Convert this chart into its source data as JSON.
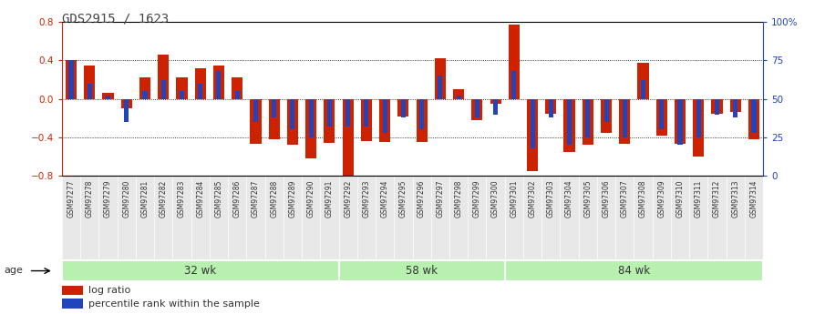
{
  "title": "GDS2915 / 1623",
  "samples": [
    "GSM97277",
    "GSM97278",
    "GSM97279",
    "GSM97280",
    "GSM97281",
    "GSM97282",
    "GSM97283",
    "GSM97284",
    "GSM97285",
    "GSM97286",
    "GSM97287",
    "GSM97288",
    "GSM97289",
    "GSM97290",
    "GSM97291",
    "GSM97292",
    "GSM97293",
    "GSM97294",
    "GSM97295",
    "GSM97296",
    "GSM97297",
    "GSM97298",
    "GSM97299",
    "GSM97300",
    "GSM97301",
    "GSM97302",
    "GSM97303",
    "GSM97304",
    "GSM97305",
    "GSM97306",
    "GSM97307",
    "GSM97308",
    "GSM97309",
    "GSM97310",
    "GSM97311",
    "GSM97312",
    "GSM97313",
    "GSM97314"
  ],
  "log_ratio": [
    0.4,
    0.35,
    0.06,
    -0.1,
    0.22,
    0.46,
    0.22,
    0.32,
    0.35,
    0.22,
    -0.47,
    -0.42,
    -0.48,
    -0.62,
    -0.46,
    -0.82,
    -0.44,
    -0.45,
    -0.18,
    -0.45,
    0.42,
    0.1,
    -0.22,
    -0.05,
    0.77,
    -0.75,
    -0.15,
    -0.55,
    -0.48,
    -0.35,
    -0.47,
    0.38,
    -0.38,
    -0.47,
    -0.6,
    -0.15,
    -0.14,
    -0.42
  ],
  "percentile": [
    0.75,
    0.6,
    0.52,
    0.35,
    0.55,
    0.62,
    0.55,
    0.6,
    0.68,
    0.55,
    0.35,
    0.38,
    0.3,
    0.25,
    0.32,
    0.32,
    0.32,
    0.28,
    0.38,
    0.3,
    0.65,
    0.52,
    0.38,
    0.4,
    0.68,
    0.18,
    0.38,
    0.2,
    0.25,
    0.35,
    0.25,
    0.62,
    0.3,
    0.2,
    0.25,
    0.4,
    0.38,
    0.28
  ],
  "groups": [
    {
      "label": "32 wk",
      "start": 0,
      "end": 15
    },
    {
      "label": "58 wk",
      "start": 15,
      "end": 24
    },
    {
      "label": "84 wk",
      "start": 24,
      "end": 38
    }
  ],
  "bar_color_red": "#cc2200",
  "bar_color_blue": "#2244bb",
  "ylim": [
    -0.8,
    0.8
  ],
  "yticks_left": [
    -0.8,
    -0.4,
    0.0,
    0.4,
    0.8
  ],
  "yticks_right": [
    0,
    25,
    50,
    75,
    100
  ],
  "right_axis_color": "#2244bb",
  "legend_log": "log ratio",
  "legend_pct": "percentile rank within the sample",
  "age_label": "age"
}
